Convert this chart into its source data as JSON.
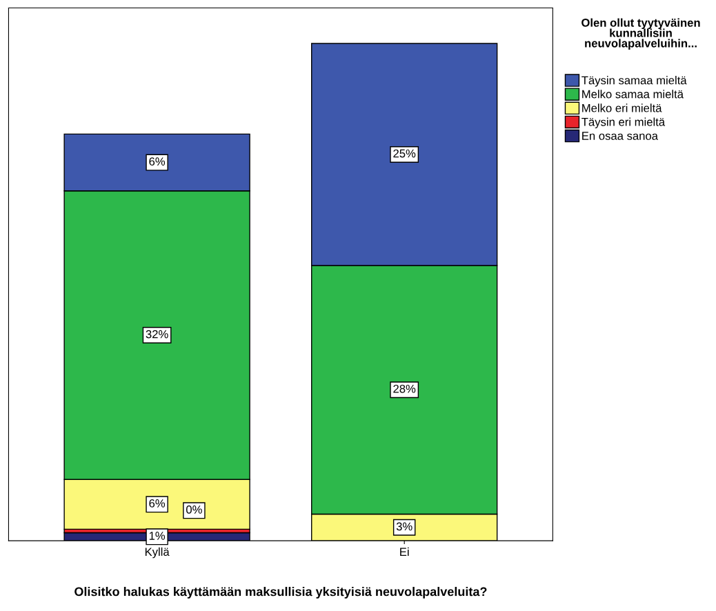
{
  "chart_data": {
    "type": "bar",
    "stacked": true,
    "categories": [
      "Kyllä",
      "Ei"
    ],
    "xlabel": "Olisitko halukas käyttämään maksullisia yksityisiä neuvolapalveluita?",
    "legend_title": "Olen ollut tyytyväinen kunnallisiin neuvolapalveluihin...",
    "legend": "top right",
    "ylim": [
      0,
      60
    ],
    "tick_labels": "x",
    "grid": false,
    "series": [
      {
        "name": "En osaa sanoa",
        "color": "#262876",
        "values": [
          0.9,
          null
        ],
        "value_labels": [
          "1%",
          null
        ]
      },
      {
        "name": "Täysin eri mieltä",
        "color": "#e8242b",
        "values": [
          0.4,
          null
        ],
        "value_labels": [
          "0%",
          null
        ]
      },
      {
        "name": "Melko eri mieltä",
        "color": "#fbf87a",
        "values": [
          5.6,
          3
        ],
        "value_labels": [
          "6%",
          "3%"
        ]
      },
      {
        "name": "Melko samaa mieltä",
        "color": "#2db84b",
        "values": [
          32.5,
          28
        ],
        "value_labels": [
          "32%",
          "28%"
        ]
      },
      {
        "name": "Täysin samaa mieltä",
        "color": "#3e58ac",
        "values": [
          6.4,
          25
        ],
        "value_labels": [
          "6%",
          "25%"
        ]
      }
    ]
  }
}
